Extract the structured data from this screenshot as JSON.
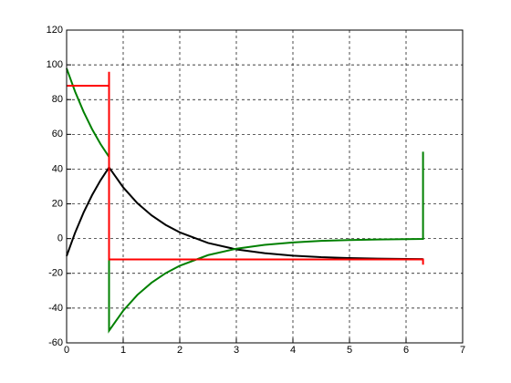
{
  "chart_data": {
    "type": "line",
    "xlim": [
      0,
      7
    ],
    "xticks": [
      0,
      1,
      2,
      3,
      4,
      5,
      6,
      7
    ],
    "ylim": [
      -60,
      120
    ],
    "yticks": [
      -60,
      -40,
      -20,
      0,
      20,
      40,
      60,
      80,
      100,
      120
    ],
    "grid": true,
    "series": [
      {
        "color": "#000000",
        "x": [
          0,
          0.15,
          0.3,
          0.45,
          0.6,
          0.75,
          1,
          1.25,
          1.5,
          1.75,
          2,
          2.5,
          3,
          3.5,
          4,
          4.5,
          5,
          5.5,
          6,
          6.3
        ],
        "values": [
          -10,
          3.4,
          15,
          25,
          33.6,
          41,
          29.5,
          20.4,
          13.4,
          7.9,
          3.6,
          -2.5,
          -6.2,
          -8.4,
          -9.8,
          -10.7,
          -11.2,
          -11.5,
          -11.7,
          -11.8
        ]
      },
      {
        "color": "#008000",
        "x": [
          0,
          0.15,
          0.3,
          0.45,
          0.6,
          0.75,
          0.75,
          1,
          1.25,
          1.5,
          1.75,
          2,
          2.5,
          3,
          3.5,
          4,
          4.5,
          5,
          5.5,
          6,
          6.3,
          6.3
        ],
        "values": [
          98,
          84.6,
          73,
          63,
          54.4,
          47,
          -53,
          -41.5,
          -32.4,
          -25.4,
          -19.9,
          -15.6,
          -9.5,
          -5.8,
          -3.6,
          -2.2,
          -1.3,
          -0.8,
          -0.5,
          -0.3,
          -0.2,
          50
        ]
      },
      {
        "color": "#ff0000",
        "x": [
          0,
          0.75,
          0.75,
          0.75,
          6.3,
          6.3
        ],
        "values": [
          88,
          88,
          96,
          -12,
          -12,
          -15
        ]
      }
    ]
  }
}
